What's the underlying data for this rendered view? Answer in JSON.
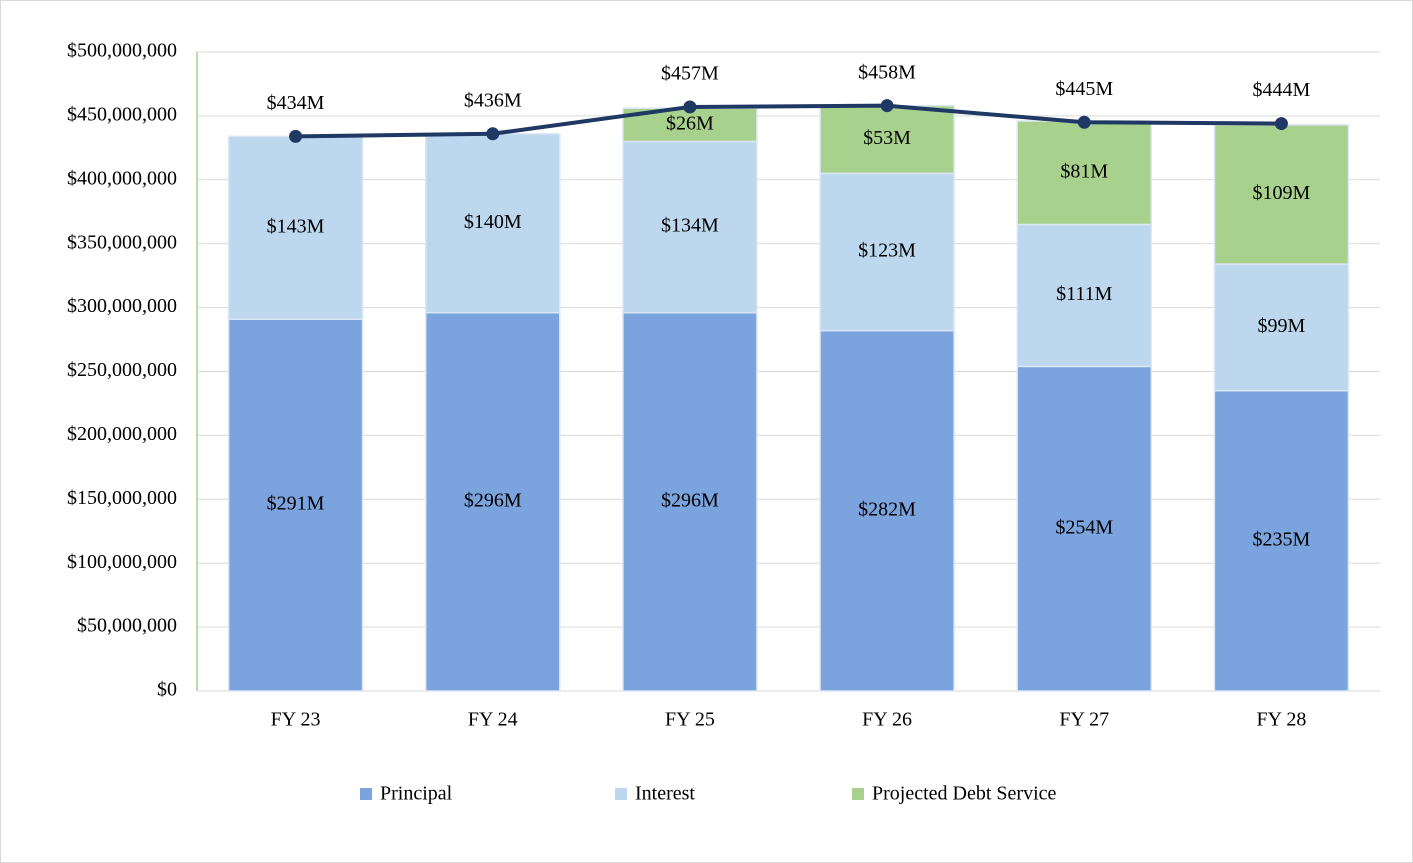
{
  "chart_data": {
    "type": "bar",
    "stacked": true,
    "categories": [
      "FY 23",
      "FY 24",
      "FY 25",
      "FY 26",
      "FY 27",
      "FY 28"
    ],
    "series": [
      {
        "name": "Principal",
        "color": "#7ba3de",
        "values": [
          291000000,
          296000000,
          296000000,
          282000000,
          254000000,
          235000000
        ],
        "value_labels": [
          "$291M",
          "$296M",
          "$296M",
          "$282M",
          "$254M",
          "$235M"
        ]
      },
      {
        "name": "Interest",
        "color": "#bdd7ee",
        "values": [
          143000000,
          140000000,
          134000000,
          123000000,
          111000000,
          99000000
        ],
        "value_labels": [
          "$143M",
          "$140M",
          "$134M",
          "$123M",
          "$111M",
          "$99M"
        ]
      },
      {
        "name": "Projected Debt Service",
        "color": "#a9d18e",
        "values": [
          null,
          null,
          26000000,
          53000000,
          81000000,
          109000000
        ],
        "value_labels": [
          null,
          null,
          "$26M",
          "$53M",
          "$81M",
          "$109M"
        ]
      }
    ],
    "line": {
      "color": "#1f3864",
      "values": [
        434000000,
        436000000,
        457000000,
        458000000,
        445000000,
        444000000
      ],
      "value_labels": [
        "$434M",
        "$436M",
        "$457M",
        "$458M",
        "$445M",
        "$444M"
      ]
    },
    "ylim": [
      0,
      500000000
    ],
    "yticks": [
      {
        "value": 0,
        "label": "$0"
      },
      {
        "value": 50000000,
        "label": "$50,000,000"
      },
      {
        "value": 100000000,
        "label": "$100,000,000"
      },
      {
        "value": 150000000,
        "label": "$150,000,000"
      },
      {
        "value": 200000000,
        "label": "$200,000,000"
      },
      {
        "value": 250000000,
        "label": "$250,000,000"
      },
      {
        "value": 300000000,
        "label": "$300,000,000"
      },
      {
        "value": 350000000,
        "label": "$350,000,000"
      },
      {
        "value": 400000000,
        "label": "$400,000,000"
      },
      {
        "value": 450000000,
        "label": "$450,000,000"
      },
      {
        "value": 500000000,
        "label": "$500,000,000"
      }
    ],
    "grid": true,
    "legend": "bottom"
  }
}
